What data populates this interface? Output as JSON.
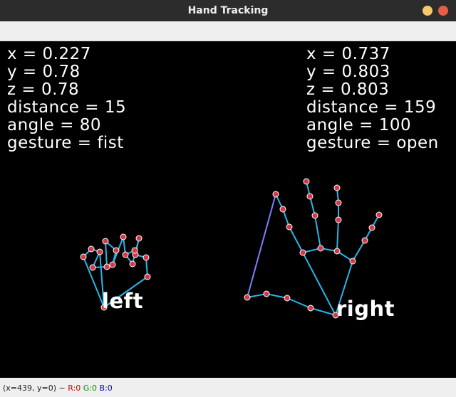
{
  "window": {
    "title": "Hand Tracking"
  },
  "left_hand": {
    "x": "x = 0.227",
    "y": "y = 0.78",
    "z": "z = 0.78",
    "distance": "distance = 15",
    "angle": "angle = 80",
    "gesture": "gesture = fist",
    "label": "left"
  },
  "right_hand": {
    "x": "x = 0.737",
    "y": "y = 0.803",
    "z": "z = 0.803",
    "distance": "distance = 159",
    "angle": "angle = 100",
    "gesture": "gesture = open",
    "label": "right"
  },
  "status": {
    "coords": "(x=439, y=0) ~ ",
    "r": "R:0",
    "g": "G:0",
    "b": "B:0"
  },
  "colors": {
    "bone": "#29b6e6",
    "joint": "#d23a4a",
    "highlight_bone": "#7f7fff"
  }
}
